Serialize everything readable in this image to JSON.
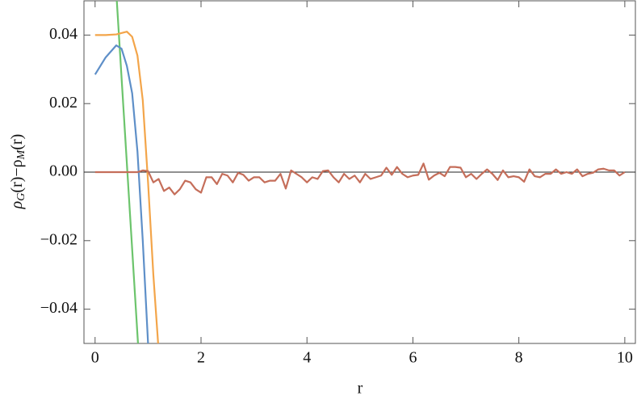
{
  "chart_data": {
    "type": "line",
    "xlabel": "r",
    "ylabel": [
      "ρ",
      "G",
      "(r)−ρ",
      "M",
      "(r)"
    ],
    "xlim": [
      -0.21,
      10.2
    ],
    "ylim": [
      -0.05,
      0.05
    ],
    "xticks": [
      0,
      2,
      4,
      6,
      8,
      10
    ],
    "yticks": [
      0.04,
      0.02,
      {
        "value": 0,
        "label": "0.00"
      },
      {
        "value": -0.02,
        "label": "−0.02"
      },
      {
        "value": -0.04,
        "label": "−0.04"
      }
    ],
    "series": [
      {
        "color": "#6cc46c",
        "x": [
          0.41,
          0.81
        ],
        "values": [
          0.05,
          -0.05
        ]
      },
      {
        "color": "#5e8fc8",
        "x": [
          0,
          0.2,
          0.4,
          0.5,
          0.6,
          0.7,
          0.8,
          0.9,
          1.0
        ],
        "values": [
          0.0285,
          0.0335,
          0.037,
          0.036,
          0.031,
          0.023,
          0.006,
          -0.02,
          -0.05
        ]
      },
      {
        "color": "#f3a54a",
        "x": [
          0,
          0.2,
          0.4,
          0.6,
          0.7,
          0.8,
          0.9,
          1.0,
          1.1,
          1.19
        ],
        "values": [
          0.04,
          0.04,
          0.0402,
          0.041,
          0.0395,
          0.034,
          0.021,
          -0.003,
          -0.03,
          -0.05
        ]
      },
      {
        "color": "#c56e5a",
        "x": [
          0,
          0.1,
          0.2,
          0.3,
          0.4,
          0.5,
          0.6,
          0.7,
          0.8,
          0.9,
          1,
          1.1,
          1.2,
          1.3,
          1.4,
          1.5,
          1.6,
          1.7,
          1.8,
          1.9,
          2,
          2.1,
          2.2,
          2.3,
          2.4,
          2.5,
          2.6,
          2.7,
          2.8,
          2.9,
          3,
          3.1,
          3.2,
          3.3,
          3.4,
          3.5,
          3.6,
          3.7,
          3.8,
          3.9,
          4,
          4.1,
          4.2,
          4.3,
          4.4,
          4.5,
          4.6,
          4.7,
          4.8,
          4.9,
          5,
          5.1,
          5.2,
          5.3,
          5.4,
          5.5,
          5.6,
          5.7,
          5.8,
          5.9,
          6,
          6.1,
          6.2,
          6.3,
          6.4,
          6.5,
          6.6,
          6.7,
          6.8,
          6.9,
          7,
          7.1,
          7.2,
          7.3,
          7.4,
          7.5,
          7.6,
          7.7,
          7.8,
          7.9,
          8,
          8.1,
          8.2,
          8.3,
          8.4,
          8.5,
          8.6,
          8.7,
          8.8,
          8.9,
          9,
          9.1,
          9.2,
          9.3,
          9.4,
          9.5,
          9.6,
          9.7,
          9.8,
          9.9,
          10
        ],
        "values": [
          0,
          0,
          0,
          0,
          0,
          0,
          0,
          0,
          0,
          0.0005,
          0.0003,
          -0.003,
          -0.002,
          -0.0055,
          -0.0045,
          -0.0065,
          -0.005,
          -0.0025,
          -0.003,
          -0.005,
          -0.006,
          -0.0015,
          -0.0015,
          -0.0035,
          -0.0005,
          -0.001,
          -0.003,
          -0.0002,
          -0.0008,
          -0.0025,
          -0.0015,
          -0.0015,
          -0.003,
          -0.0025,
          -0.0025,
          -0.0005,
          -0.0048,
          0.0005,
          -0.0005,
          -0.0015,
          -0.003,
          -0.0015,
          -0.002,
          0.0003,
          0.0005,
          -0.0015,
          -0.003,
          -0.0005,
          -0.002,
          -0.001,
          -0.003,
          -0.0005,
          -0.002,
          -0.0015,
          -0.001,
          0.0013,
          -0.0008,
          0.0015,
          -0.0005,
          -0.0015,
          -0.001,
          -0.0008,
          0.0025,
          -0.0022,
          -0.001,
          -0.0002,
          -0.0012,
          0.0015,
          0.0015,
          0.0013,
          -0.0015,
          -0.0005,
          -0.002,
          -0.0005,
          0.0008,
          -0.0005,
          -0.0023,
          0.0005,
          -0.0015,
          -0.0012,
          -0.0015,
          -0.0028,
          0.0008,
          -0.0012,
          -0.0015,
          -0.0005,
          -0.0005,
          0.0008,
          -0.0005,
          0,
          -0.0005,
          0.0008,
          -0.0012,
          -0.0005,
          -0.0002,
          0.0008,
          0.001,
          0.0005,
          0.0005,
          -0.001,
          0
        ]
      }
    ]
  }
}
